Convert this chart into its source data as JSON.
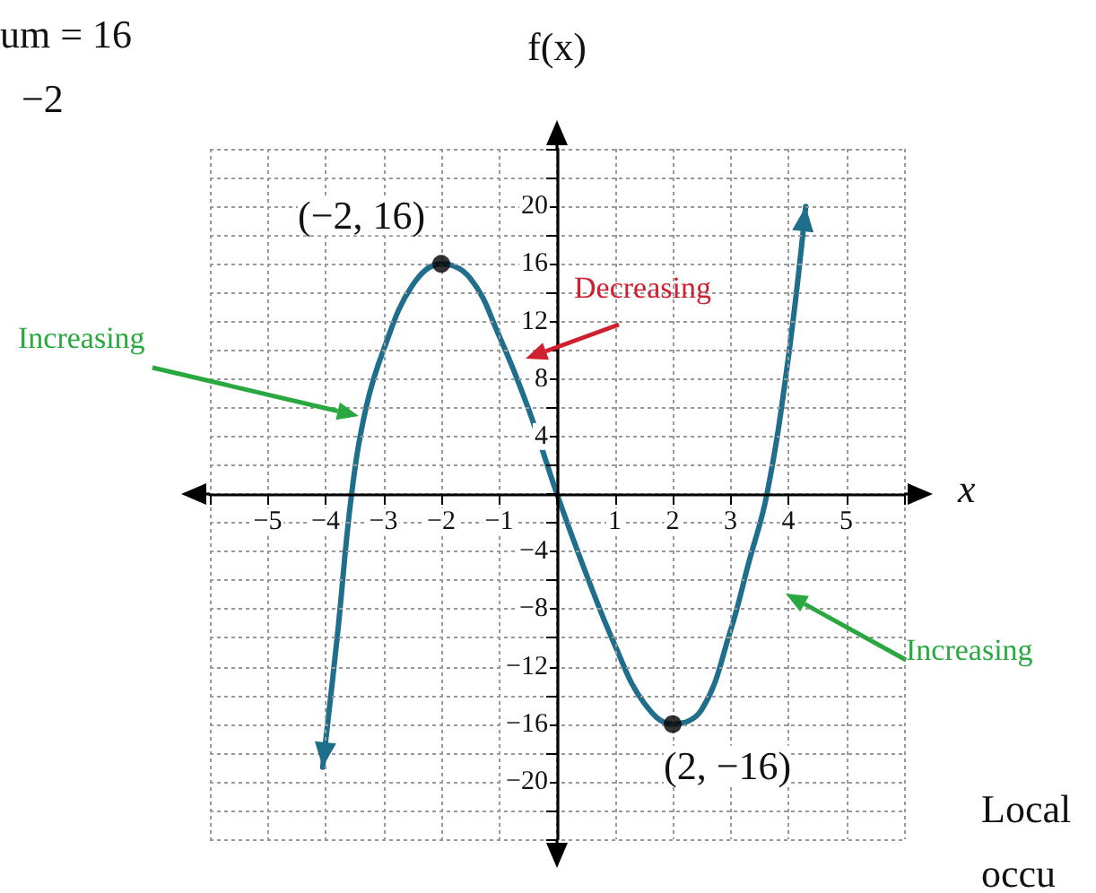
{
  "chart_data": {
    "type": "line",
    "xlabel": "x",
    "ylabel": "f(x)",
    "xlim": [
      -6,
      6
    ],
    "xticks": [
      {
        "value": -6,
        "label": null
      },
      {
        "value": -5,
        "label": "−5"
      },
      {
        "value": -4,
        "label": "−4"
      },
      {
        "value": -3,
        "label": "−3"
      },
      {
        "value": -2,
        "label": "−2"
      },
      {
        "value": -1,
        "label": "−1"
      },
      {
        "value": 0,
        "label": null
      },
      1,
      2,
      3,
      4,
      5,
      {
        "value": 6,
        "label": null
      }
    ],
    "ylim": [
      -24,
      24
    ],
    "yticks": [
      {
        "value": -24,
        "label": null
      },
      {
        "value": -22,
        "label": null
      },
      {
        "value": -20,
        "label": "−20"
      },
      {
        "value": -18,
        "label": null
      },
      {
        "value": -16,
        "label": "−16"
      },
      {
        "value": -14,
        "label": null
      },
      {
        "value": -12,
        "label": "−12"
      },
      {
        "value": -10,
        "label": null
      },
      {
        "value": -8,
        "label": "−8"
      },
      {
        "value": -6,
        "label": null
      },
      {
        "value": -4,
        "label": "−4"
      },
      {
        "value": -2,
        "label": null
      },
      {
        "value": 0,
        "label": null
      },
      {
        "value": 2,
        "label": null
      },
      4,
      {
        "value": 6,
        "label": null
      },
      8,
      {
        "value": 10,
        "label": null
      },
      12,
      {
        "value": 14,
        "label": null
      },
      16,
      {
        "value": 18,
        "label": null
      },
      20,
      {
        "value": 22,
        "label": null
      },
      {
        "value": 24,
        "label": null
      }
    ],
    "grid": true,
    "series": [
      {
        "color": "#1f6e8c",
        "x": [
          -4.05,
          -3.8,
          -3.55,
          -3.3,
          -3,
          -2.5,
          -2,
          -1.5,
          -1,
          -0.5,
          0,
          0.5,
          1,
          1.5,
          2,
          2.5,
          3,
          3.3,
          3.63,
          4,
          4.3
        ],
        "values": [
          -19,
          -10,
          0,
          6,
          10,
          14.5,
          16,
          15,
          11,
          6,
          0,
          -5.5,
          -10.5,
          -14.5,
          -16,
          -15,
          -9.5,
          -5,
          0,
          9.5,
          20
        ]
      },
      {
        "type": "scatter",
        "color": "#000000",
        "x": [
          -2,
          2
        ],
        "values": [
          16,
          -16
        ]
      }
    ],
    "annotations": [
      {
        "text": "(−2, 16)",
        "x": -2,
        "y": 16
      },
      {
        "text": "(2, −16)",
        "x": 2,
        "y": -16
      },
      "Increasing",
      "Decreasing",
      "Increasing",
      "um = 16",
      "−2",
      "Local",
      "occu"
    ]
  }
}
